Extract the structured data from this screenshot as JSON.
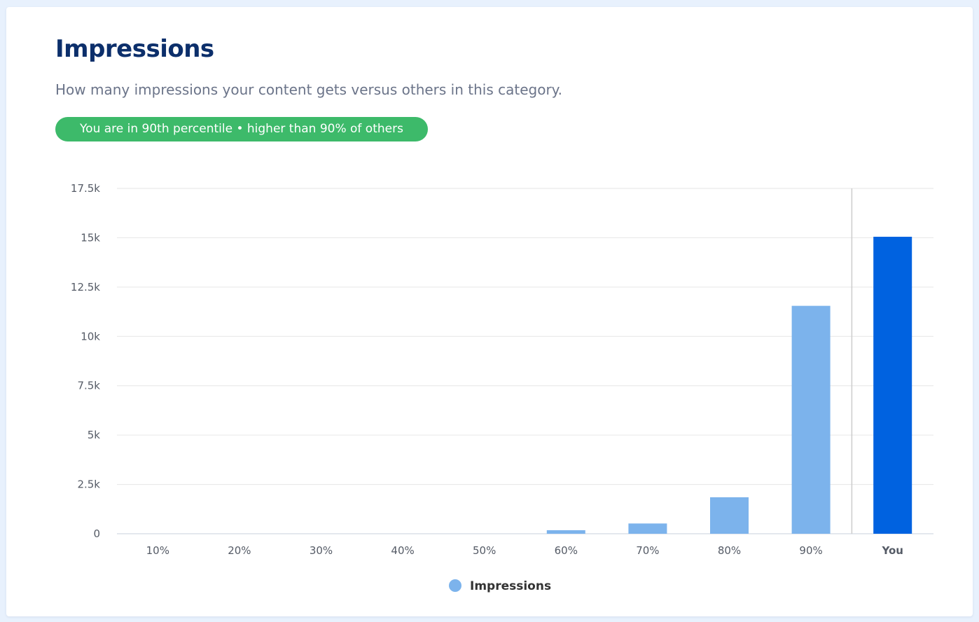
{
  "card": {
    "title": "Impressions",
    "subtitle": "How many impressions your content gets versus others in this category.",
    "badge": "You are in 90th percentile • higher than 90% of others"
  },
  "colors": {
    "title": "#0c2f6b",
    "badge": "#3dba6a",
    "bar": "#7cb3ec",
    "bar_highlight": "#0062e0",
    "gridline": "#e6e6e6"
  },
  "chart_data": {
    "type": "bar",
    "title": "",
    "xlabel": "",
    "ylabel": "",
    "categories": [
      "10%",
      "20%",
      "30%",
      "40%",
      "50%",
      "60%",
      "70%",
      "80%",
      "90%",
      "You"
    ],
    "series": [
      {
        "name": "Impressions",
        "values": [
          0,
          0,
          0,
          0,
          0,
          180,
          520,
          1850,
          11550,
          15050
        ],
        "color": "#7cb3ec",
        "highlight_category": "You",
        "highlight_color": "#0062e0"
      }
    ],
    "ylim": [
      0,
      17500
    ],
    "yticks": [
      "0",
      "2.5k",
      "5k",
      "7.5k",
      "10k",
      "12.5k",
      "15k",
      "17.5k"
    ],
    "grid": true,
    "divider_before_category": "You",
    "legend": {
      "position": "bottom-center",
      "entries": [
        "Impressions"
      ]
    }
  }
}
